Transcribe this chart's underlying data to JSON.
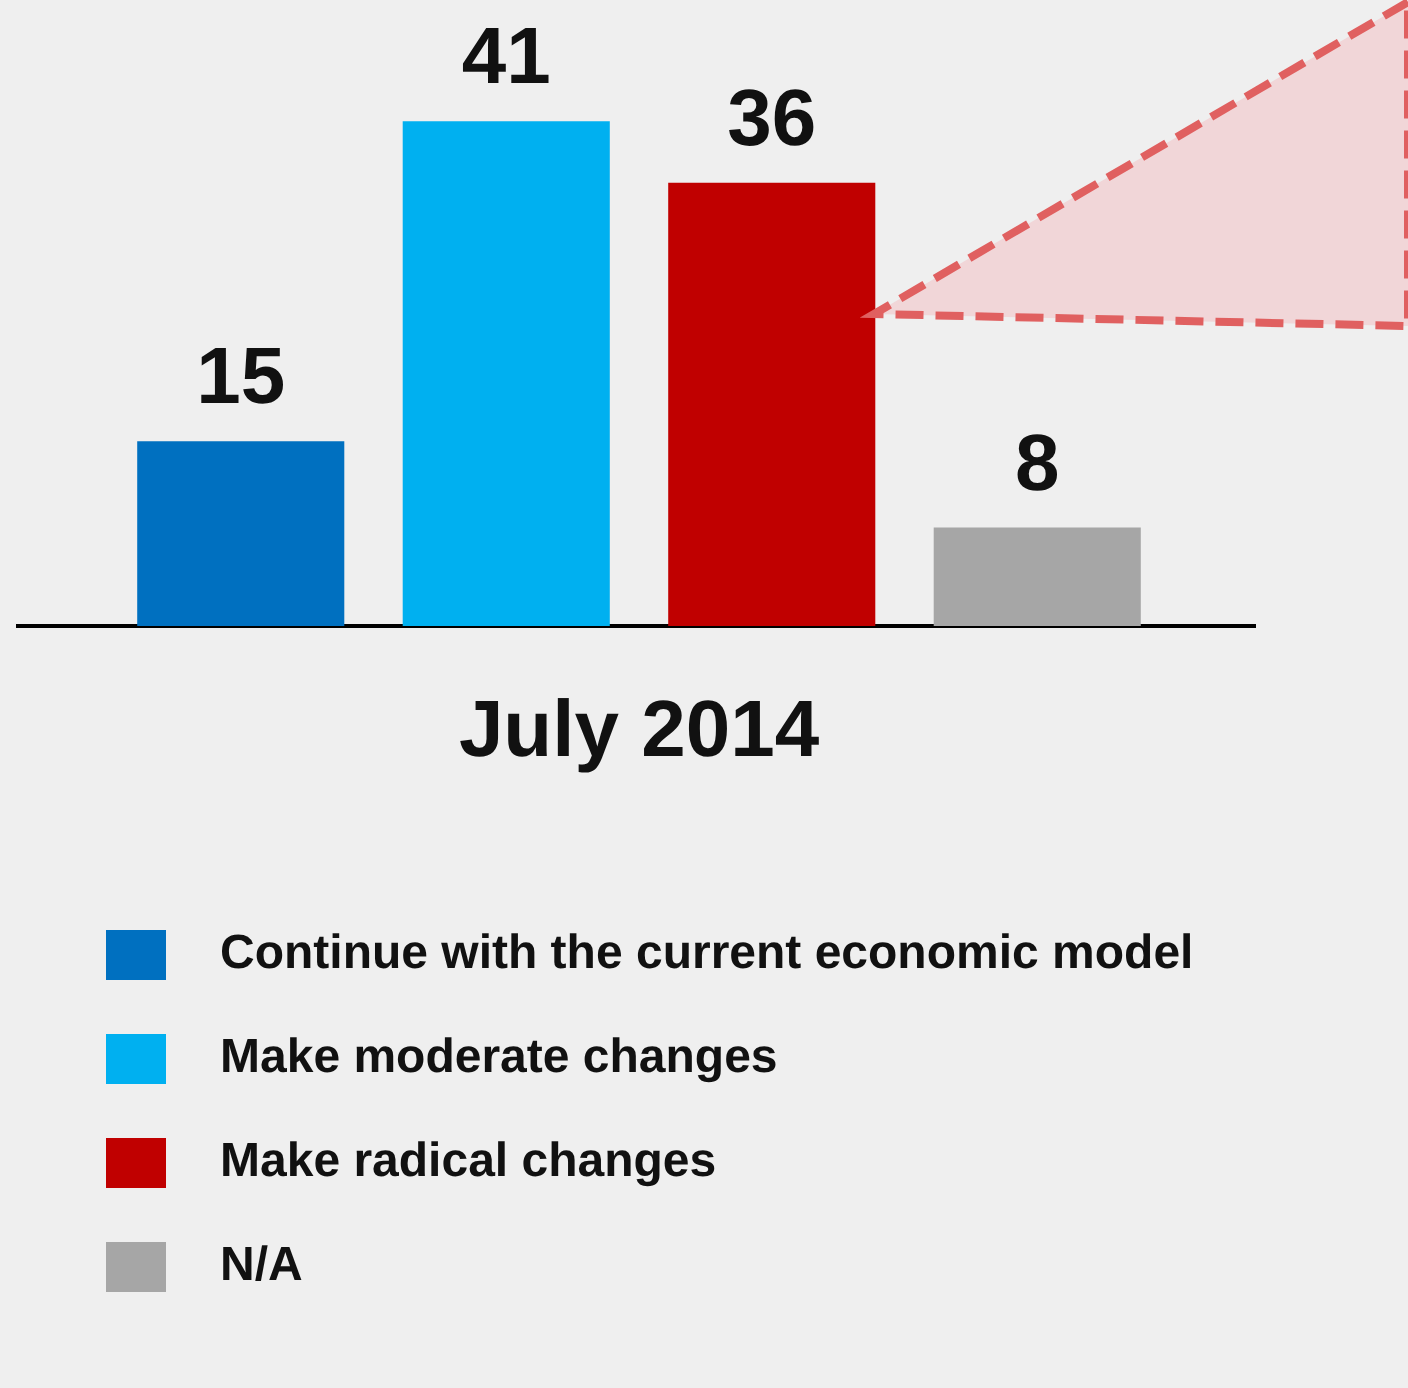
{
  "chart_data": {
    "type": "bar",
    "categories": [
      null,
      null,
      null,
      null
    ],
    "xlabel": "July 2014",
    "stacked": true,
    "series": [
      {
        "name": "Continue with the current economic model",
        "color": "#0070c0",
        "values": [
          15,
          null,
          null,
          null
        ]
      },
      {
        "name": "Make moderate changes",
        "color": "#00b0f0",
        "values": [
          null,
          41,
          null,
          null
        ]
      },
      {
        "name": "Make radical changes",
        "color": "#c00000",
        "values": [
          null,
          null,
          36,
          null
        ]
      },
      {
        "name": "N/A",
        "color": "#a6a6a6",
        "values": [
          null,
          null,
          null,
          8
        ]
      }
    ],
    "data_labels": true,
    "legend": "bottom",
    "grid": false
  }
}
